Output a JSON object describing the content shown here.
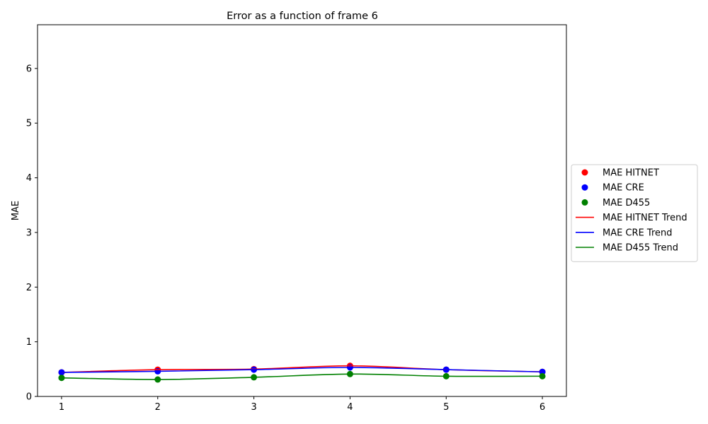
{
  "chart_data": {
    "type": "line",
    "title": "Error as a function of frame 6",
    "xlabel": "",
    "ylabel": "MAE",
    "x": [
      1,
      2,
      3,
      4,
      5,
      6
    ],
    "xlim": [
      0.75,
      6.25
    ],
    "ylim": [
      0,
      6.8
    ],
    "xticks": [
      "1",
      "2",
      "3",
      "4",
      "5",
      "6"
    ],
    "yticks": [
      "0",
      "1",
      "2",
      "3",
      "4",
      "5",
      "6"
    ],
    "grid": false,
    "legend_position": "center-right-outside",
    "series": [
      {
        "name": "MAE HITNET",
        "kind": "points",
        "color": "#ff0000",
        "values": [
          0.44,
          0.49,
          0.5,
          0.56,
          0.49,
          0.45
        ]
      },
      {
        "name": "MAE CRE",
        "kind": "points",
        "color": "#0000ff",
        "values": [
          0.44,
          0.46,
          0.49,
          0.53,
          0.49,
          0.45
        ]
      },
      {
        "name": "MAE D455",
        "kind": "points",
        "color": "#008000",
        "values": [
          0.34,
          0.31,
          0.35,
          0.41,
          0.37,
          0.37
        ]
      },
      {
        "name": "MAE HITNET Trend",
        "kind": "line",
        "color": "#ff0000",
        "values": [
          0.44,
          0.49,
          0.5,
          0.56,
          0.49,
          0.45
        ]
      },
      {
        "name": "MAE CRE Trend",
        "kind": "line",
        "color": "#0000ff",
        "values": [
          0.44,
          0.46,
          0.49,
          0.53,
          0.49,
          0.45
        ]
      },
      {
        "name": "MAE D455 Trend",
        "kind": "line",
        "color": "#008000",
        "values": [
          0.34,
          0.31,
          0.35,
          0.41,
          0.37,
          0.37
        ]
      }
    ]
  }
}
